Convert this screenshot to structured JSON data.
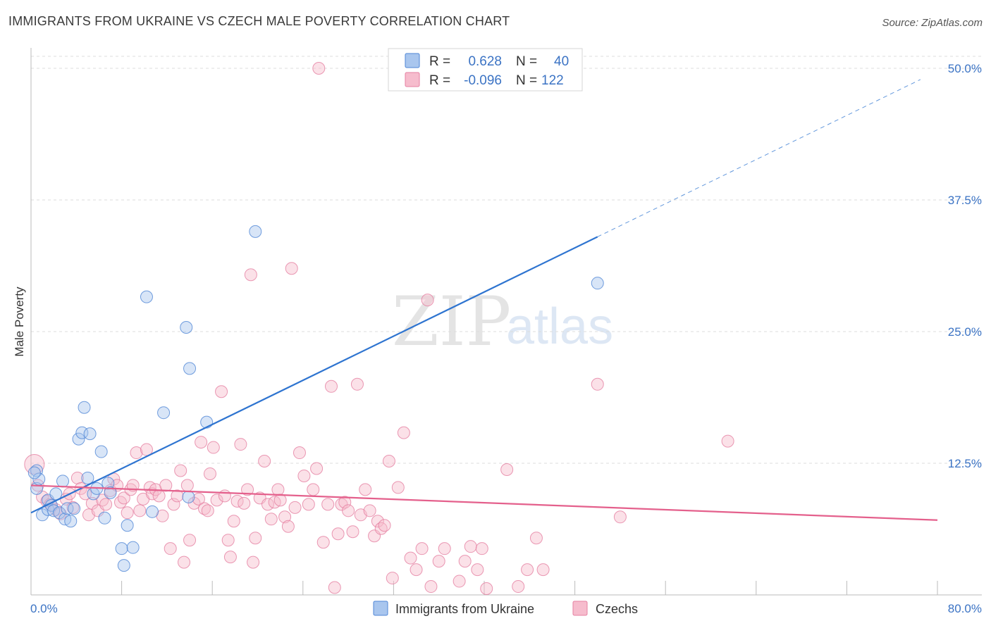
{
  "title": "IMMIGRANTS FROM UKRAINE VS CZECH MALE POVERTY CORRELATION CHART",
  "source": "Source: ZipAtlas.com",
  "watermark": {
    "part1": "ZIP",
    "part2": "atlas"
  },
  "colors": {
    "blue_fill": "#a9c6ee",
    "blue_stroke": "#4f86d6",
    "blue_line": "#2e74d0",
    "pink_fill": "#f6bccd",
    "pink_stroke": "#e57fa1",
    "pink_line": "#e4608c",
    "tick_text": "#3b73c4",
    "grid": "#dcdcdc"
  },
  "legend": {
    "rows": [
      {
        "r_label": "R =",
        "r_value": "0.628",
        "n_label": "N =",
        "n_value": "40"
      },
      {
        "r_label": "R =",
        "r_value": "-0.096",
        "n_label": "N =",
        "n_value": "122"
      }
    ]
  },
  "chart_data": {
    "type": "scatter",
    "title": "IMMIGRANTS FROM UKRAINE VS CZECH MALE POVERTY CORRELATION CHART",
    "xlabel": "",
    "ylabel": "Male Poverty",
    "xlim": [
      0,
      80
    ],
    "ylim": [
      0,
      50
    ],
    "x_tick_labels": [
      "0.0%",
      "80.0%"
    ],
    "y_ticks": [
      12.5,
      25.0,
      37.5,
      50.0
    ],
    "y_tick_labels": [
      "12.5%",
      "25.0%",
      "37.5%",
      "50.0%"
    ],
    "grid": true,
    "series": [
      {
        "name": "Immigrants from Ukraine",
        "color": "blue",
        "trend": {
          "x0": 0,
          "y0": 7.8,
          "x1": 50,
          "y1": 34.0,
          "dash_to_x": 78.5
        },
        "points": [
          [
            0.5,
            11.8
          ],
          [
            0.5,
            10.1
          ],
          [
            0.7,
            11.0
          ],
          [
            1.0,
            7.6
          ],
          [
            1.5,
            8.1
          ],
          [
            1.5,
            9.0
          ],
          [
            1.8,
            8.5
          ],
          [
            2.0,
            8.0
          ],
          [
            2.2,
            9.6
          ],
          [
            2.5,
            7.8
          ],
          [
            2.8,
            10.8
          ],
          [
            3.0,
            7.2
          ],
          [
            3.2,
            8.2
          ],
          [
            3.5,
            7.0
          ],
          [
            3.8,
            8.2
          ],
          [
            4.2,
            14.8
          ],
          [
            4.5,
            15.4
          ],
          [
            4.7,
            17.8
          ],
          [
            5.0,
            11.1
          ],
          [
            5.2,
            15.3
          ],
          [
            5.5,
            9.6
          ],
          [
            5.8,
            10.1
          ],
          [
            6.2,
            13.6
          ],
          [
            6.5,
            7.3
          ],
          [
            6.8,
            10.6
          ],
          [
            7.0,
            9.7
          ],
          [
            8.0,
            4.4
          ],
          [
            8.2,
            2.8
          ],
          [
            8.5,
            6.6
          ],
          [
            9.0,
            4.5
          ],
          [
            10.2,
            28.3
          ],
          [
            10.7,
            7.9
          ],
          [
            11.7,
            17.3
          ],
          [
            13.7,
            25.4
          ],
          [
            14.0,
            21.5
          ],
          [
            13.9,
            9.3
          ],
          [
            15.5,
            16.4
          ],
          [
            19.8,
            34.5
          ],
          [
            50.0,
            29.6
          ],
          [
            0.3,
            11.6
          ]
        ]
      },
      {
        "name": "Czechs",
        "color": "pink",
        "trend": {
          "x0": 0,
          "y0": 10.4,
          "x1": 80,
          "y1": 7.1
        },
        "points": [
          [
            0.3,
            12.4
          ],
          [
            0.6,
            10.4
          ],
          [
            1.0,
            9.3
          ],
          [
            1.4,
            8.9
          ],
          [
            1.7,
            8.6
          ],
          [
            2.2,
            8.1
          ],
          [
            2.6,
            7.7
          ],
          [
            3.1,
            9.1
          ],
          [
            3.4,
            9.6
          ],
          [
            3.7,
            8.3
          ],
          [
            4.1,
            11.1
          ],
          [
            4.4,
            10.1
          ],
          [
            4.8,
            9.6
          ],
          [
            5.1,
            7.6
          ],
          [
            5.4,
            8.7
          ],
          [
            5.9,
            8.0
          ],
          [
            6.3,
            9.0
          ],
          [
            6.6,
            8.6
          ],
          [
            7.0,
            9.9
          ],
          [
            7.3,
            11.0
          ],
          [
            7.6,
            10.4
          ],
          [
            7.9,
            8.8
          ],
          [
            8.2,
            9.2
          ],
          [
            8.5,
            7.8
          ],
          [
            8.8,
            10.0
          ],
          [
            9.0,
            10.4
          ],
          [
            9.3,
            13.5
          ],
          [
            9.6,
            8.0
          ],
          [
            9.9,
            9.1
          ],
          [
            10.2,
            13.8
          ],
          [
            10.5,
            10.2
          ],
          [
            10.7,
            9.6
          ],
          [
            11.0,
            10.0
          ],
          [
            11.3,
            9.4
          ],
          [
            11.6,
            7.5
          ],
          [
            11.9,
            10.4
          ],
          [
            12.3,
            4.4
          ],
          [
            12.6,
            8.6
          ],
          [
            12.9,
            9.4
          ],
          [
            13.2,
            11.8
          ],
          [
            13.5,
            3.1
          ],
          [
            13.8,
            10.4
          ],
          [
            14.0,
            5.2
          ],
          [
            14.4,
            8.7
          ],
          [
            14.8,
            9.1
          ],
          [
            15.0,
            14.5
          ],
          [
            15.3,
            8.2
          ],
          [
            15.6,
            8.0
          ],
          [
            15.8,
            11.5
          ],
          [
            16.1,
            14.0
          ],
          [
            16.4,
            9.0
          ],
          [
            16.8,
            19.3
          ],
          [
            17.1,
            9.4
          ],
          [
            17.4,
            5.2
          ],
          [
            17.6,
            3.6
          ],
          [
            17.9,
            7.0
          ],
          [
            18.2,
            8.9
          ],
          [
            18.5,
            14.3
          ],
          [
            18.8,
            8.7
          ],
          [
            19.1,
            10.0
          ],
          [
            19.4,
            30.4
          ],
          [
            19.6,
            3.1
          ],
          [
            19.8,
            5.4
          ],
          [
            20.2,
            9.2
          ],
          [
            20.6,
            12.7
          ],
          [
            20.9,
            8.6
          ],
          [
            21.2,
            7.2
          ],
          [
            21.5,
            8.8
          ],
          [
            21.8,
            10.0
          ],
          [
            22.0,
            9.0
          ],
          [
            22.4,
            7.4
          ],
          [
            22.7,
            6.5
          ],
          [
            23.0,
            31.0
          ],
          [
            23.3,
            8.3
          ],
          [
            23.7,
            13.5
          ],
          [
            24.1,
            11.3
          ],
          [
            24.5,
            8.6
          ],
          [
            24.9,
            10.0
          ],
          [
            25.2,
            12.0
          ],
          [
            25.4,
            50.0
          ],
          [
            25.8,
            5.0
          ],
          [
            26.2,
            8.6
          ],
          [
            26.5,
            19.8
          ],
          [
            26.8,
            0.7
          ],
          [
            27.1,
            5.8
          ],
          [
            27.4,
            8.6
          ],
          [
            27.7,
            8.8
          ],
          [
            28.0,
            8.0
          ],
          [
            28.4,
            6.0
          ],
          [
            28.8,
            20.0
          ],
          [
            29.1,
            7.6
          ],
          [
            29.5,
            10.0
          ],
          [
            29.9,
            8.0
          ],
          [
            30.3,
            5.6
          ],
          [
            30.6,
            7.0
          ],
          [
            30.9,
            6.3
          ],
          [
            31.2,
            6.6
          ],
          [
            31.6,
            12.7
          ],
          [
            31.9,
            1.6
          ],
          [
            32.4,
            10.2
          ],
          [
            32.9,
            15.4
          ],
          [
            33.5,
            3.5
          ],
          [
            34.0,
            2.4
          ],
          [
            34.5,
            4.4
          ],
          [
            35.0,
            28.0
          ],
          [
            35.3,
            0.8
          ],
          [
            36.0,
            3.2
          ],
          [
            36.5,
            4.4
          ],
          [
            37.8,
            1.3
          ],
          [
            38.3,
            3.2
          ],
          [
            38.8,
            4.6
          ],
          [
            39.4,
            2.4
          ],
          [
            39.8,
            4.4
          ],
          [
            40.2,
            0.6
          ],
          [
            42.0,
            11.9
          ],
          [
            43.0,
            0.8
          ],
          [
            43.8,
            2.4
          ],
          [
            44.6,
            5.4
          ],
          [
            45.2,
            2.4
          ],
          [
            50.0,
            20.0
          ],
          [
            52.0,
            7.4
          ],
          [
            61.5,
            14.6
          ]
        ]
      }
    ]
  },
  "bottom_legend": {
    "items": [
      {
        "label": "Immigrants from Ukraine",
        "color": "blue"
      },
      {
        "label": "Czechs",
        "color": "pink"
      }
    ]
  }
}
